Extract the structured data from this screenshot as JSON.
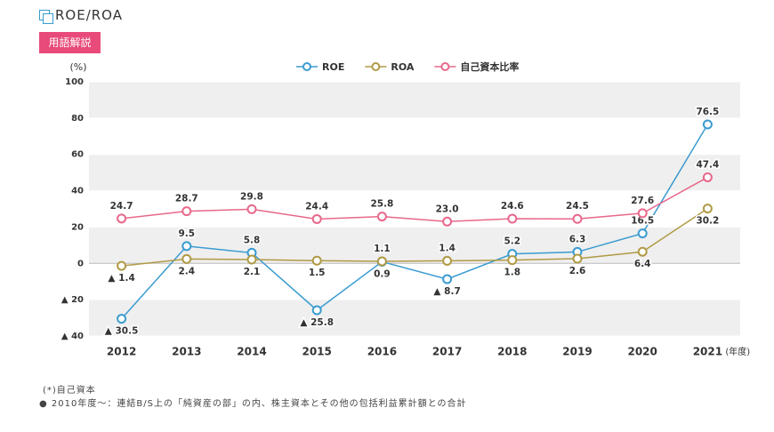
{
  "header": {
    "title": "ROE/ROA",
    "button": "用語解説"
  },
  "chart_data": {
    "type": "line",
    "y_label": "(%)",
    "x_unit": "(年度)",
    "categories": [
      "2012",
      "2013",
      "2014",
      "2015",
      "2016",
      "2017",
      "2018",
      "2019",
      "2020",
      "2021"
    ],
    "series": [
      {
        "name": "ROE",
        "color": "#3a9bd0",
        "values": [
          -30.5,
          9.5,
          5.8,
          -25.8,
          0.9,
          -8.7,
          5.2,
          6.3,
          16.5,
          76.5
        ],
        "value_labels": [
          "▲ 30.5",
          "9.5",
          "5.8",
          "▲ 25.8",
          "0.9",
          "▲ 8.7",
          "5.2",
          "6.3",
          "16.5",
          "76.5"
        ]
      },
      {
        "name": "ROA",
        "color": "#b09a45",
        "values": [
          -1.4,
          2.4,
          2.1,
          1.5,
          1.1,
          1.4,
          1.8,
          2.6,
          6.4,
          30.2
        ],
        "value_labels": [
          "▲ 1.4",
          "2.4",
          "2.1",
          "1.5",
          "1.1",
          "1.4",
          "1.8",
          "2.6",
          "6.4",
          "30.2"
        ]
      },
      {
        "name": "自己資本比率",
        "color": "#e8688a",
        "values": [
          24.7,
          28.7,
          29.8,
          24.4,
          25.8,
          23.0,
          24.6,
          24.5,
          27.6,
          47.4
        ],
        "value_labels": [
          "24.7",
          "28.7",
          "29.8",
          "24.4",
          "25.8",
          "23.0",
          "24.6",
          "24.5",
          "27.6",
          "47.4"
        ]
      }
    ],
    "ylim": [
      -40,
      100
    ],
    "yticks": [
      {
        "value": -40,
        "label": "▲ 40"
      },
      {
        "value": -20,
        "label": "▲ 20"
      },
      0,
      20,
      40,
      60,
      80,
      100
    ],
    "grid": true
  },
  "footnotes": [
    "(*)自己資本",
    "2010年度～：連結B/S上の「純資産の部」の内、株主資本とその他の包括利益累計額との合計"
  ]
}
